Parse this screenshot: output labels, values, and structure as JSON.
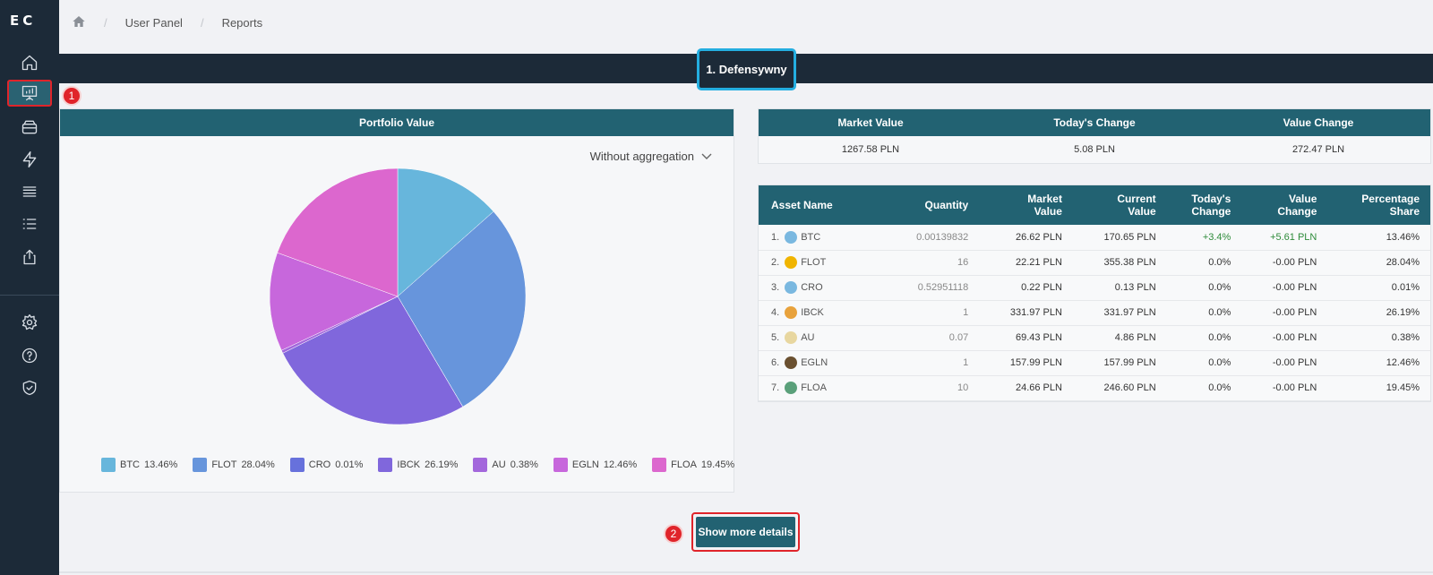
{
  "sidebar": {
    "logo": "EC",
    "items": [
      {
        "name": "home-icon"
      },
      {
        "name": "presentation-chart-icon",
        "active": true
      },
      {
        "name": "wallet-icon"
      },
      {
        "name": "lightning-icon"
      },
      {
        "name": "stack-icon"
      },
      {
        "name": "list-icon"
      },
      {
        "name": "upload-icon"
      },
      {
        "name": "gear-icon"
      },
      {
        "name": "help-icon"
      },
      {
        "name": "shield-icon"
      }
    ]
  },
  "markers": {
    "one": "1",
    "two": "2"
  },
  "breadcrumb": {
    "items": [
      "User Panel",
      "Reports"
    ]
  },
  "strategy": {
    "title": "1. Defensywny"
  },
  "portfolio": {
    "title": "Portfolio Value",
    "aggregation": "Without aggregation",
    "legend": [
      {
        "label": "BTC",
        "pct": "13.46%",
        "color": "#67b6dc"
      },
      {
        "label": "FLOT",
        "pct": "28.04%",
        "color": "#6795dc"
      },
      {
        "label": "CRO",
        "pct": "0.01%",
        "color": "#6771dc"
      },
      {
        "label": "IBCK",
        "pct": "26.19%",
        "color": "#8067dc"
      },
      {
        "label": "AU",
        "pct": "0.38%",
        "color": "#a367dc"
      },
      {
        "label": "EGLN",
        "pct": "12.46%",
        "color": "#c767dc"
      },
      {
        "label": "FLOA",
        "pct": "19.45%",
        "color": "#dc67ce"
      }
    ]
  },
  "chart_data": {
    "type": "pie",
    "categories": [
      "BTC",
      "FLOT",
      "CRO",
      "IBCK",
      "AU",
      "EGLN",
      "FLOA"
    ],
    "values": [
      13.46,
      28.04,
      0.01,
      26.19,
      0.38,
      12.46,
      19.45
    ],
    "colors": [
      "#67b6dc",
      "#6795dc",
      "#6771dc",
      "#8067dc",
      "#a367dc",
      "#c767dc",
      "#dc67ce"
    ]
  },
  "summary": {
    "headers": [
      "Market Value",
      "Today's Change",
      "Value Change"
    ],
    "values": [
      "1267.58 PLN",
      "5.08 PLN",
      "272.47 PLN"
    ]
  },
  "assets": {
    "headers": {
      "name": "Asset Name",
      "quantity": "Quantity",
      "market_value": [
        "Market",
        "Value"
      ],
      "current_value": [
        "Current",
        "Value"
      ],
      "todays_change": [
        "Today's",
        "Change"
      ],
      "value_change": [
        "Value",
        "Change"
      ],
      "percentage_share": [
        "Percentage",
        "Share"
      ]
    },
    "rows": [
      {
        "n": "1.",
        "name": "BTC",
        "qty": "0.00139832",
        "market": "26.62 PLN",
        "current": "170.65 PLN",
        "today": "+3.4%",
        "change": "+5.61 PLN",
        "share": "13.46%",
        "positive": true,
        "icon": "#7ab8e0"
      },
      {
        "n": "2.",
        "name": "FLOT",
        "qty": "16",
        "market": "22.21 PLN",
        "current": "355.38 PLN",
        "today": "0.0%",
        "change": "-0.00 PLN",
        "share": "28.04%",
        "positive": false,
        "icon": "#f0b400"
      },
      {
        "n": "3.",
        "name": "CRO",
        "qty": "0.52951118",
        "market": "0.22 PLN",
        "current": "0.13 PLN",
        "today": "0.0%",
        "change": "-0.00 PLN",
        "share": "0.01%",
        "positive": false,
        "icon": "#7ab8e0"
      },
      {
        "n": "4.",
        "name": "IBCK",
        "qty": "1",
        "market": "331.97 PLN",
        "current": "331.97 PLN",
        "today": "0.0%",
        "change": "-0.00 PLN",
        "share": "26.19%",
        "positive": false,
        "icon": "#e8a23c"
      },
      {
        "n": "5.",
        "name": "AU",
        "qty": "0.07",
        "market": "69.43 PLN",
        "current": "4.86 PLN",
        "today": "0.0%",
        "change": "-0.00 PLN",
        "share": "0.38%",
        "positive": false,
        "icon": "#e8d7a0"
      },
      {
        "n": "6.",
        "name": "EGLN",
        "qty": "1",
        "market": "157.99 PLN",
        "current": "157.99 PLN",
        "today": "0.0%",
        "change": "-0.00 PLN",
        "share": "12.46%",
        "positive": false,
        "icon": "#6a5030"
      },
      {
        "n": "7.",
        "name": "FLOA",
        "qty": "10",
        "market": "24.66 PLN",
        "current": "246.60 PLN",
        "today": "0.0%",
        "change": "-0.00 PLN",
        "share": "19.45%",
        "positive": false,
        "icon": "#5aa07a"
      }
    ]
  },
  "actions": {
    "show_more": "Show more details"
  }
}
